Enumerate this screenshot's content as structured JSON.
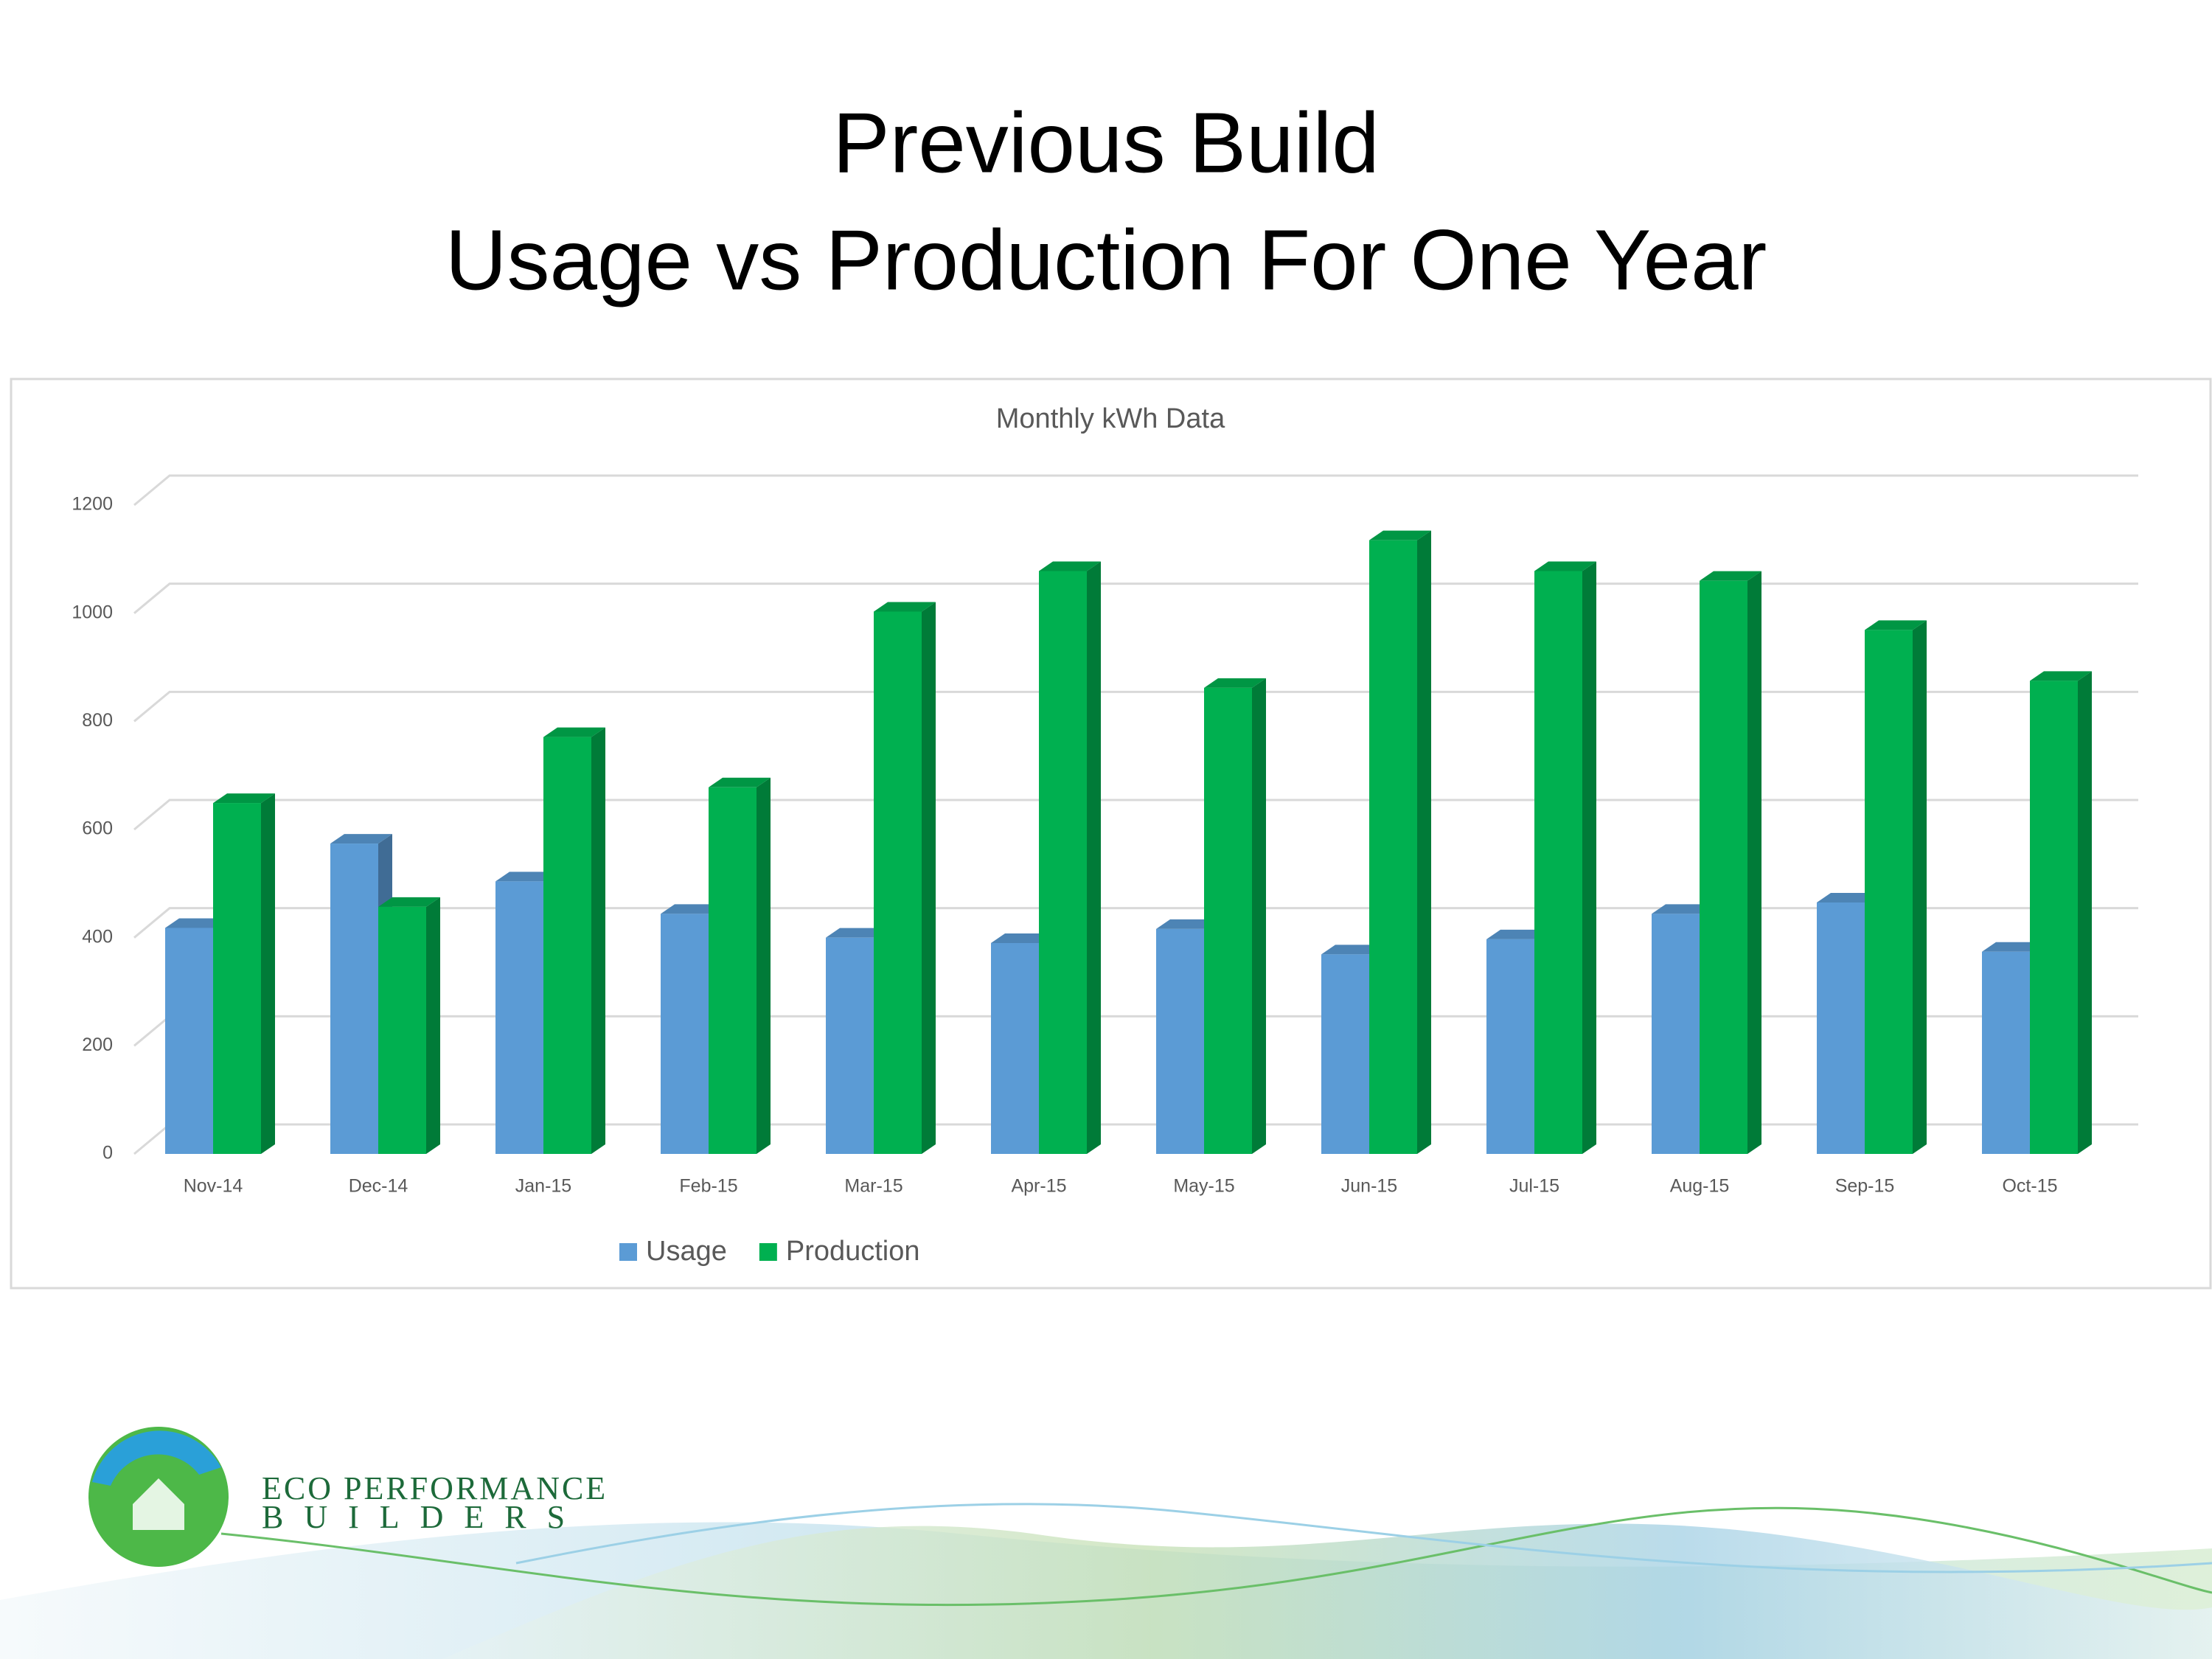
{
  "slide": {
    "title_lines": [
      "Previous Build",
      "Usage vs Production For One Year"
    ],
    "logo": {
      "line1": "ECO PERFORMANCE",
      "line2": "BUILDERS"
    }
  },
  "chart_data": {
    "type": "bar3d",
    "title": "Monthly kWh Data",
    "categories": [
      "Nov-14",
      "Dec-14",
      "Jan-15",
      "Feb-15",
      "Mar-15",
      "Apr-15",
      "May-15",
      "Jun-15",
      "Jul-15",
      "Aug-15",
      "Sep-15",
      "Oct-15"
    ],
    "series": [
      {
        "name": "Usage",
        "color": "#5b9bd5",
        "values": [
          418,
          574,
          504,
          444,
          400,
          390,
          416,
          369,
          397,
          444,
          465,
          374
        ]
      },
      {
        "name": "Production",
        "color": "#00b050",
        "values": [
          649,
          457,
          771,
          678,
          1003,
          1078,
          862,
          1135,
          1078,
          1060,
          969,
          875
        ]
      }
    ],
    "ylim": [
      0,
      1200
    ],
    "yticks": [
      0,
      200,
      400,
      600,
      800,
      1000,
      1200
    ],
    "grid": true,
    "legend": "bottom"
  }
}
